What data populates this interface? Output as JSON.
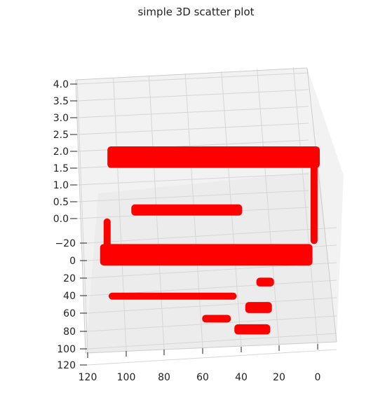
{
  "chart_data": {
    "type": "scatter",
    "title": "simple 3D scatter plot",
    "projection": "3d",
    "marker_color": "#ff0000",
    "pane_color": "#f2f2f2",
    "grid": true,
    "xlabel": "",
    "ylabel": "",
    "zlabel": "",
    "z_ticks": [
      "0.0",
      "0.5",
      "1.0",
      "1.5",
      "2.0",
      "2.5",
      "3.0",
      "3.5",
      "4.0"
    ],
    "y_ticks": [
      "−20",
      "0",
      "20",
      "40",
      "60",
      "80",
      "100",
      "120"
    ],
    "x_ticks": [
      "120",
      "100",
      "80",
      "60",
      "40",
      "20",
      "0"
    ],
    "zlim": [
      0,
      4
    ],
    "ylim": [
      -20,
      120
    ],
    "xlim": [
      0,
      120
    ],
    "series": [
      {
        "description": "upper layer at height 1 forming a frame shape",
        "z": 1,
        "segments": [
          {
            "x": [
              5,
              120
            ],
            "y": [
              -25,
              -25
            ]
          },
          {
            "x": [
              115,
              120
            ],
            "y": [
              -25,
              62
            ]
          },
          {
            "x": [
              5,
              120
            ],
            "y": [
              62,
              62
            ]
          },
          {
            "x": [
              5,
              10
            ],
            "y": [
              20,
              62
            ]
          },
          {
            "x": [
              20,
              80
            ],
            "y": [
              20,
              20
            ]
          }
        ]
      },
      {
        "description": "lower layer at height 0 forming block shapes",
        "z": 0,
        "segments": [
          {
            "x": [
              90,
              100
            ],
            "y": [
              70,
              80
            ]
          },
          {
            "x": [
              10,
              80
            ],
            "y": [
              70,
              85
            ]
          },
          {
            "x": [
              85,
              100
            ],
            "y": [
              92,
              105
            ]
          },
          {
            "x": [
              62,
              78
            ],
            "y": [
              100,
              110
            ]
          },
          {
            "x": [
              80,
              100
            ],
            "y": [
              112,
              125
            ]
          }
        ]
      }
    ]
  }
}
